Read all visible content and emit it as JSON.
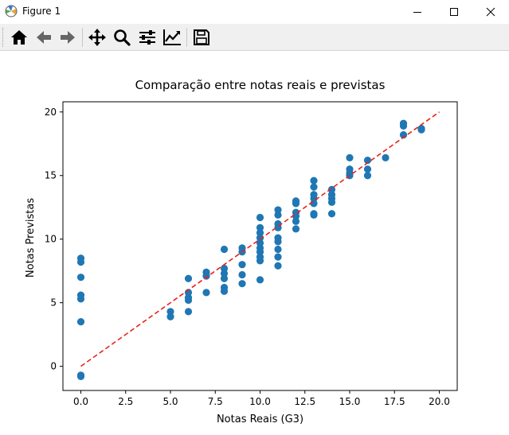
{
  "window": {
    "title": "Figure 1"
  },
  "toolbar": {
    "buttons": [
      {
        "name": "home-icon"
      },
      {
        "name": "back-arrow-icon"
      },
      {
        "name": "forward-arrow-icon"
      },
      {
        "name": "pan-icon"
      },
      {
        "name": "zoom-icon"
      },
      {
        "name": "subplots-icon"
      },
      {
        "name": "edit-axis-icon"
      },
      {
        "name": "save-icon"
      }
    ]
  },
  "colors": {
    "points": "#1f77b4",
    "line": "#e8231c",
    "axes": "#000000"
  },
  "chart_data": {
    "type": "scatter",
    "title": "Comparação entre notas reais e previstas",
    "xlabel": "Notas Reais (G3)",
    "ylabel": "Notas Previstas",
    "xlim": [
      -1,
      21
    ],
    "ylim": [
      -1.9,
      20.8
    ],
    "xticks": [
      0,
      2.5,
      5,
      7.5,
      10,
      12.5,
      15,
      17.5,
      20
    ],
    "xtick_labels": [
      "0.0",
      "2.5",
      "5.0",
      "7.5",
      "10.0",
      "12.5",
      "15.0",
      "17.5",
      "20.0"
    ],
    "yticks": [
      0,
      5,
      10,
      15,
      20
    ],
    "ytick_labels": [
      "0",
      "5",
      "10",
      "15",
      "20"
    ],
    "grid": false,
    "reference_line": {
      "x": [
        0,
        20
      ],
      "y": [
        0,
        20
      ],
      "style": "dashed"
    },
    "series": [
      {
        "points": [
          [
            0,
            -0.8
          ],
          [
            0,
            -0.7
          ],
          [
            0,
            3.5
          ],
          [
            0,
            5.3
          ],
          [
            0,
            5.6
          ],
          [
            0,
            7.0
          ],
          [
            0,
            8.2
          ],
          [
            0,
            8.5
          ],
          [
            5,
            3.9
          ],
          [
            5,
            4.3
          ],
          [
            6,
            4.3
          ],
          [
            6,
            5.2
          ],
          [
            6,
            5.4
          ],
          [
            6,
            5.8
          ],
          [
            6,
            6.9
          ],
          [
            7,
            5.8
          ],
          [
            7,
            7.1
          ],
          [
            7,
            7.4
          ],
          [
            8,
            5.9
          ],
          [
            8,
            6.2
          ],
          [
            8,
            6.9
          ],
          [
            8,
            7.3
          ],
          [
            8,
            7.7
          ],
          [
            8,
            9.2
          ],
          [
            9,
            6.5
          ],
          [
            9,
            7.2
          ],
          [
            9,
            8.0
          ],
          [
            9,
            9.0
          ],
          [
            9,
            9.3
          ],
          [
            10,
            6.8
          ],
          [
            10,
            8.3
          ],
          [
            10,
            8.6
          ],
          [
            10,
            9.0
          ],
          [
            10,
            9.3
          ],
          [
            10,
            9.7
          ],
          [
            10,
            10.1
          ],
          [
            10,
            10.5
          ],
          [
            10,
            10.9
          ],
          [
            10,
            11.7
          ],
          [
            11,
            7.9
          ],
          [
            11,
            8.6
          ],
          [
            11,
            9.2
          ],
          [
            11,
            9.8
          ],
          [
            11,
            10.1
          ],
          [
            11,
            10.9
          ],
          [
            11,
            11.2
          ],
          [
            11,
            11.9
          ],
          [
            11,
            12.3
          ],
          [
            12,
            10.8
          ],
          [
            12,
            11.4
          ],
          [
            12,
            11.8
          ],
          [
            12,
            12.1
          ],
          [
            12,
            12.8
          ],
          [
            12,
            13.0
          ],
          [
            13,
            11.9
          ],
          [
            13,
            12.0
          ],
          [
            13,
            12.8
          ],
          [
            13,
            13.2
          ],
          [
            13,
            13.5
          ],
          [
            13,
            14.1
          ],
          [
            13,
            14.6
          ],
          [
            14,
            12.0
          ],
          [
            14,
            12.9
          ],
          [
            14,
            13.2
          ],
          [
            14,
            13.5
          ],
          [
            14,
            13.9
          ],
          [
            15,
            15.0
          ],
          [
            15,
            15.2
          ],
          [
            15,
            15.5
          ],
          [
            15,
            16.4
          ],
          [
            16,
            15.0
          ],
          [
            16,
            15.5
          ],
          [
            16,
            16.2
          ],
          [
            17,
            16.4
          ],
          [
            18,
            18.2
          ],
          [
            18,
            18.9
          ],
          [
            18,
            19.1
          ],
          [
            19,
            18.6
          ],
          [
            19,
            18.7
          ]
        ]
      }
    ]
  }
}
